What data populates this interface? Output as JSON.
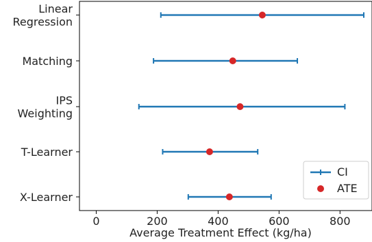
{
  "chart_data": {
    "type": "scatter",
    "title": "",
    "xlabel": "Average Treatment Effect (kg/ha)",
    "ylabel": "",
    "xlim": [
      -55,
      905
    ],
    "xticks": [
      0,
      200,
      400,
      600,
      800
    ],
    "grid": false,
    "legend_position": "lower right",
    "categories": [
      {
        "lines": [
          "Linear",
          "Regression"
        ]
      },
      {
        "lines": [
          "Matching"
        ]
      },
      {
        "lines": [
          "IPS",
          "Weighting"
        ]
      },
      {
        "lines": [
          "T-Learner"
        ]
      },
      {
        "lines": [
          "X-Learner"
        ]
      }
    ],
    "series": [
      {
        "name": "ATE",
        "values": [
          545,
          448,
          472,
          372,
          437
        ],
        "color": "#d62728"
      },
      {
        "name": "CI",
        "lower": [
          212,
          188,
          140,
          218,
          302
        ],
        "upper": [
          878,
          660,
          816,
          530,
          574
        ],
        "color": "#1f77b4"
      }
    ]
  }
}
